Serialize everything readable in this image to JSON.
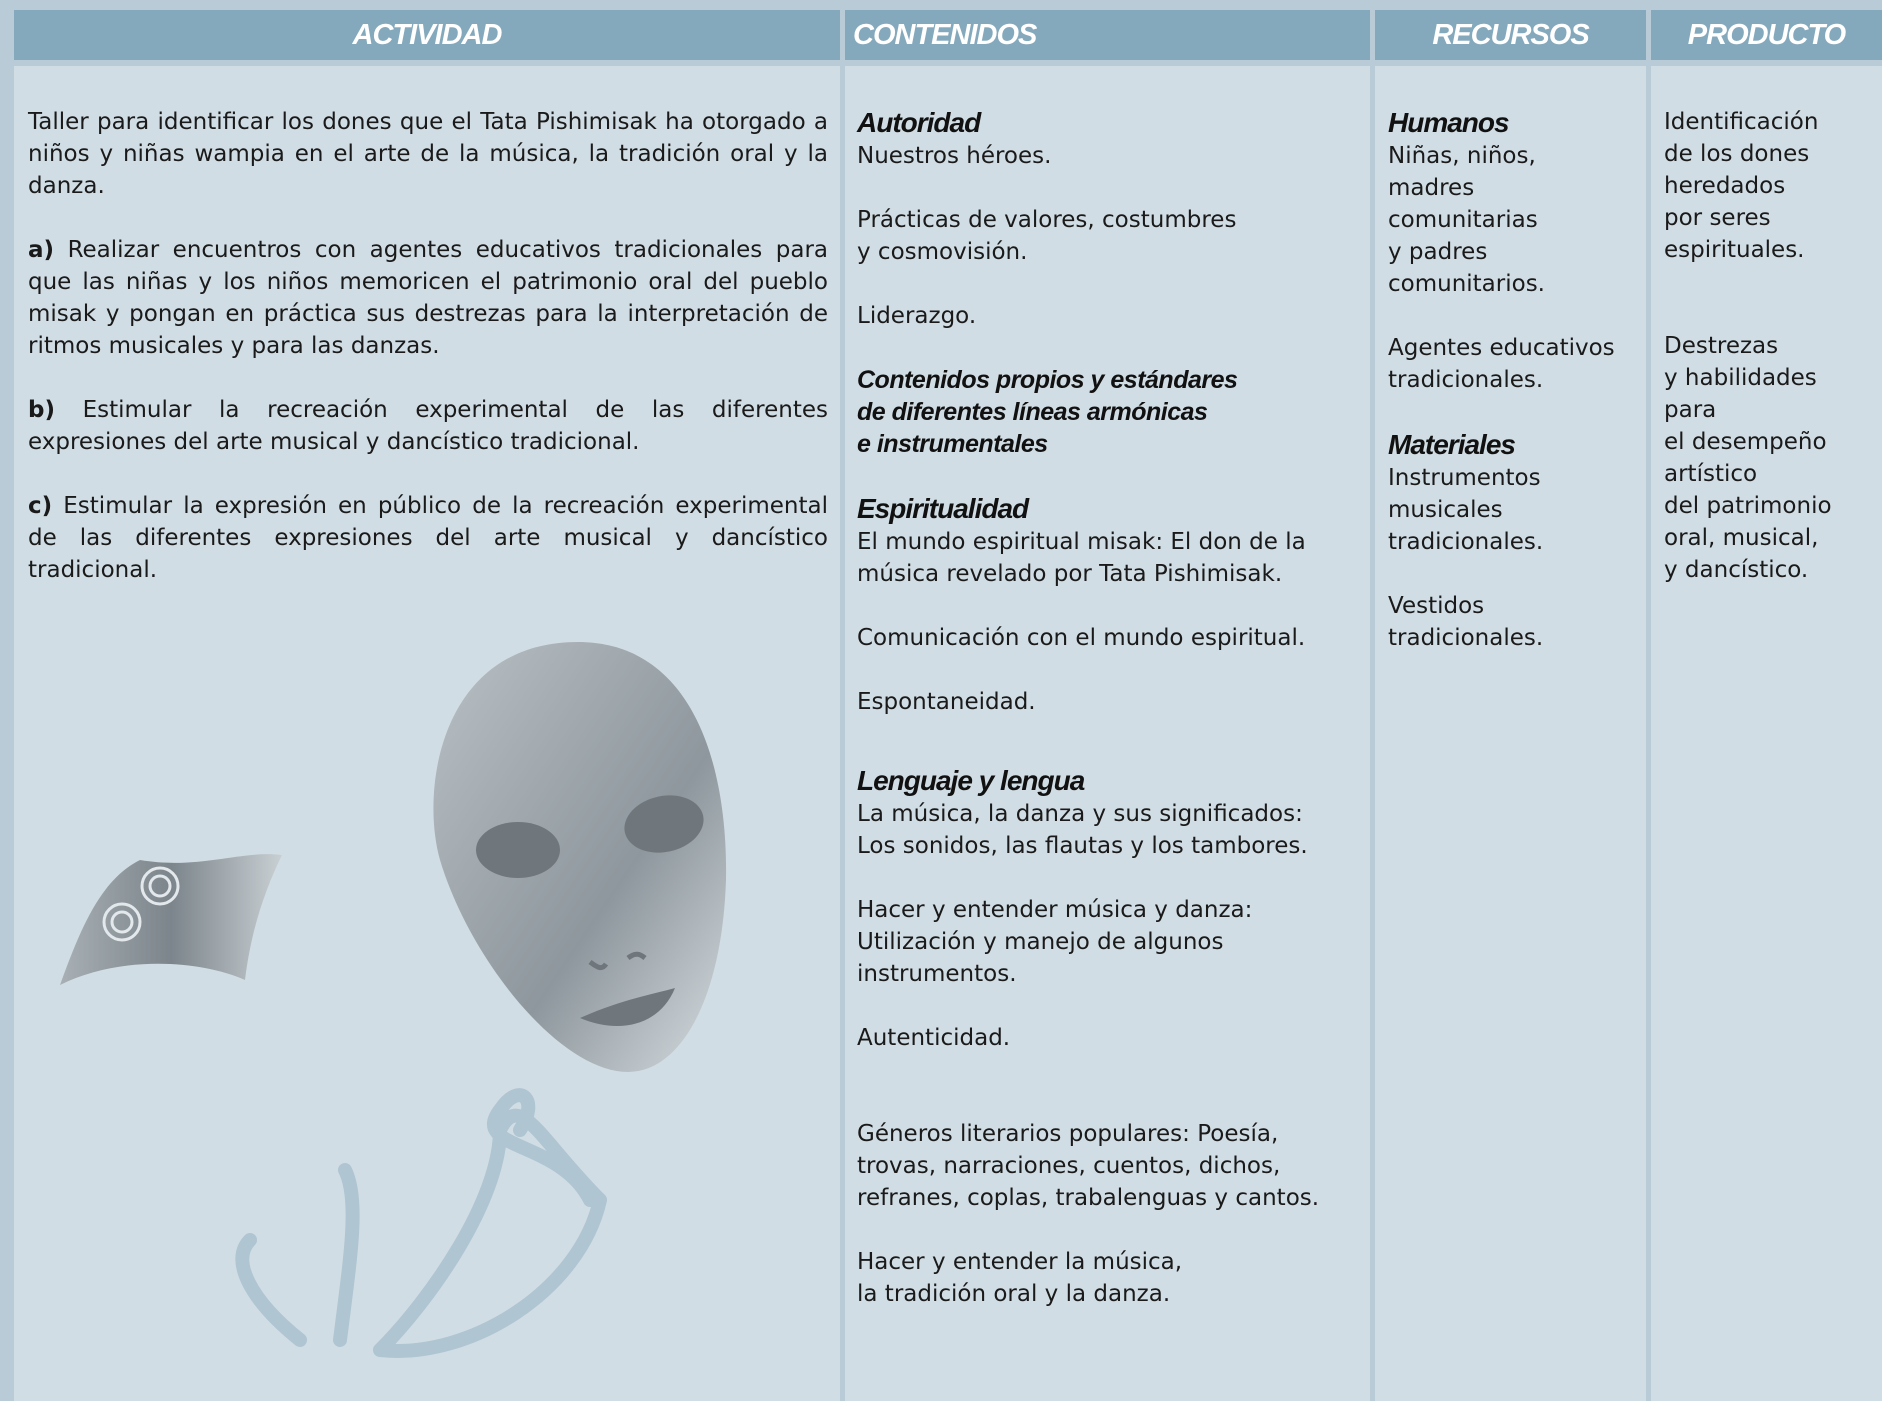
{
  "header": {
    "columns": [
      "ACTIVIDAD",
      "CONTENIDOS",
      "RECURSOS",
      "PRODUCTO"
    ]
  },
  "actividad": {
    "intro": "Taller para identificar los dones que el Tata Pishimisak ha otorgado a niños y niñas wampia en el arte de la música, la tradición oral y la danza.",
    "items": [
      {
        "label": "a)",
        "text": "Realizar encuentros con agentes educativos tradicionales para que las niñas y los niños memoricen el patrimonio oral del pueblo misak y pongan en práctica sus destrezas para la interpretación de ritmos musicales y para las danzas."
      },
      {
        "label": "b)",
        "text": "Estimular la recreación experimental de las diferentes expresiones del arte musical y dancístico tradicional."
      },
      {
        "label": "c)",
        "text": "Estimular la expresión en público de  la recreación experimental de las diferentes expresiones del arte musical y dancístico tradicional."
      }
    ]
  },
  "contenidos": {
    "sections": [
      {
        "heading": "Autoridad",
        "paragraphs": [
          "Nuestros héroes.",
          "Prácticas de valores, costumbres\ny cosmovisión.",
          "Liderazgo."
        ],
        "note": "Contenidos propios y estándares\nde diferentes líneas armónicas\ne instrumentales"
      },
      {
        "heading": "Espiritualidad",
        "paragraphs": [
          "El mundo espiritual misak: El don de la\nmúsica revelado por Tata Pishimisak.",
          "Comunicación con el mundo espiritual.",
          "Espontaneidad."
        ]
      },
      {
        "heading": "Lenguaje y lengua",
        "paragraphs": [
          "La música, la danza y sus significados:\nLos sonidos, las flautas y los tambores.",
          "Hacer y entender música y danza:\nUtilización y manejo de algunos\ninstrumentos.",
          "Autenticidad.",
          "Géneros literarios populares: Poesía,\ntrovas, narraciones, cuentos, dichos,\nrefranes, coplas, trabalenguas y cantos.",
          "Hacer y entender la música,\nla tradición oral y la danza."
        ]
      }
    ]
  },
  "recursos": {
    "sections": [
      {
        "heading": "Humanos",
        "paragraphs": [
          "Niñas, niños,\nmadres\ncomunitarias\ny padres\ncomunitarios.",
          "Agentes educativos\ntradicionales."
        ]
      },
      {
        "heading": "Materiales",
        "paragraphs": [
          "Instrumentos\nmusicales\ntradicionales.",
          "Vestidos tradicionales."
        ]
      }
    ]
  },
  "producto": {
    "paragraphs": [
      "Identificación\nde los dones\nheredados\npor seres\nespirituales.",
      "Destrezas\ny habilidades\npara\nel desempeño\nartístico\ndel patrimonio\noral, musical,\ny dancístico."
    ]
  }
}
